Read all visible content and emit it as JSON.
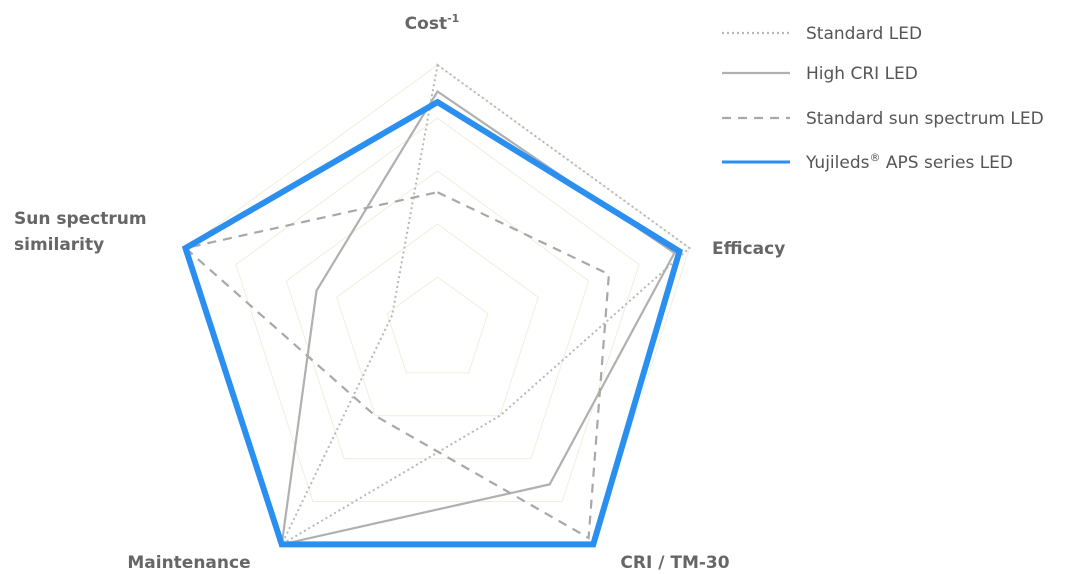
{
  "chart_data": {
    "type": "radar",
    "axes": [
      {
        "label": "Cost",
        "superscript": "-1"
      },
      {
        "label": "Efficacy",
        "superscript": ""
      },
      {
        "label": "CRI / TM-30",
        "superscript": ""
      },
      {
        "label": "Maintenance",
        "superscript": ""
      },
      {
        "label": "Sun spectrum similarity",
        "superscript": ""
      }
    ],
    "range": [
      0,
      5
    ],
    "grid_levels": [
      1,
      2,
      3,
      4,
      5
    ],
    "grid_color": "#efefdf",
    "series": [
      {
        "name": "Standard LED",
        "superscript": "",
        "values": [
          5.0,
          5.0,
          2.0,
          5.0,
          0.9
        ],
        "color": "#b8b8b8",
        "style": "dotted"
      },
      {
        "name": "High CRI LED",
        "superscript": "",
        "values": [
          4.5,
          4.7,
          3.6,
          5.0,
          2.4
        ],
        "color": "#b0b0b0",
        "style": "solid"
      },
      {
        "name": "Standard sun spectrum LED",
        "superscript": "",
        "values": [
          2.6,
          3.4,
          4.85,
          2.0,
          5.0
        ],
        "color": "#a8a8a8",
        "style": "dashed"
      },
      {
        "name": "Yujileds",
        "superscript": "®",
        "suffix": " APS series LED",
        "values": [
          4.3,
          4.8,
          5.0,
          5.0,
          5.0
        ],
        "color": "#2b8ff0",
        "style": "bold"
      }
    ]
  }
}
